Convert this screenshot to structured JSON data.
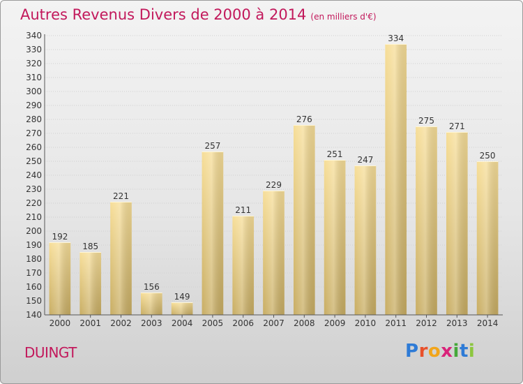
{
  "header": {
    "title": "Autres Revenus Divers de 2000 à 2014",
    "unit": "(en milliers d'€)"
  },
  "footer": {
    "town": "DUINGT",
    "logo_letters": [
      "P",
      "r",
      "o",
      "x",
      "i",
      "t",
      "i"
    ],
    "logo_colors": [
      "#2e7bd6",
      "#e8502a",
      "#f2a51a",
      "#d9237a",
      "#45a83a",
      "#2e7bd6",
      "#8cc63f"
    ]
  },
  "chart_data": {
    "type": "bar",
    "categories": [
      "2000",
      "2001",
      "2002",
      "2003",
      "2004",
      "2005",
      "2006",
      "2007",
      "2008",
      "2009",
      "2010",
      "2011",
      "2012",
      "2013",
      "2014"
    ],
    "values": [
      192,
      185,
      221,
      156,
      149,
      257,
      211,
      229,
      276,
      251,
      247,
      334,
      275,
      271,
      250
    ],
    "ylim": [
      140,
      340
    ],
    "yticks": [
      140,
      150,
      160,
      170,
      180,
      190,
      200,
      210,
      220,
      230,
      240,
      250,
      260,
      270,
      280,
      290,
      300,
      310,
      320,
      330,
      340
    ],
    "grid": true,
    "bar_color": "#e8cd82"
  }
}
